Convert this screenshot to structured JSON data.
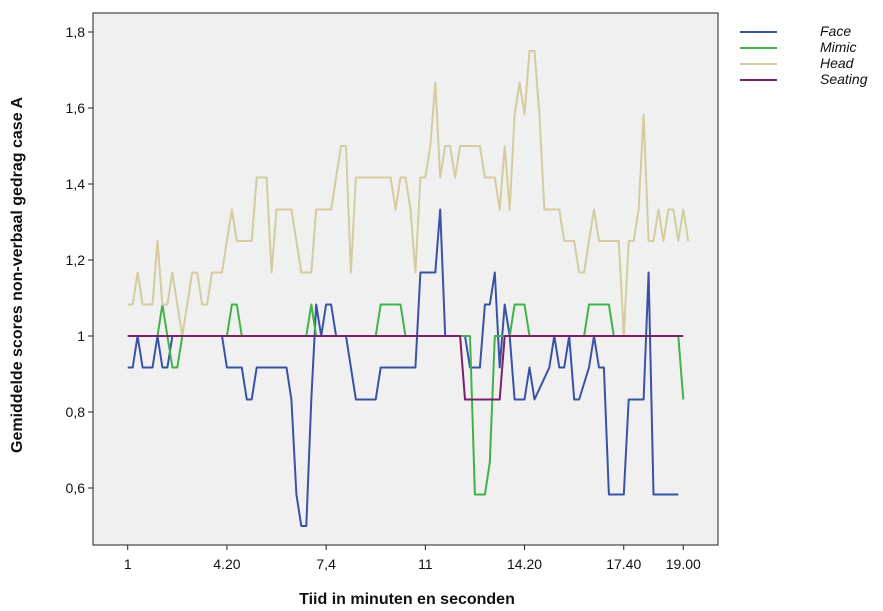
{
  "chart_data": {
    "type": "line",
    "xlabel": "Tiid in minuten en seconden",
    "ylabel": "Gemiddelde scores non-verbaal gedrag case A",
    "x_tick_labels": [
      "1",
      "4.20",
      "7,4",
      "11",
      "14.20",
      "17.40",
      "19.00"
    ],
    "x_tick_positions": [
      1,
      21,
      41,
      61,
      81,
      101,
      113
    ],
    "xlim": [
      -6,
      120
    ],
    "y_tick_labels": [
      "0,6",
      "0,8",
      "1",
      "1,2",
      "1,4",
      "1,6",
      "1,8"
    ],
    "y_tick_values": [
      0.6,
      0.8,
      1.0,
      1.2,
      1.4,
      1.6,
      1.8
    ],
    "ylim": [
      0.45,
      1.85
    ],
    "grid": false,
    "legend_position": "right",
    "plot_background": "#f0f0f0",
    "series": [
      {
        "name": "Face",
        "color": "#3953a4",
        "points": [
          [
            1,
            0.917
          ],
          [
            2,
            0.917
          ],
          [
            3,
            1.0
          ],
          [
            4,
            0.917
          ],
          [
            6,
            0.917
          ],
          [
            7,
            1.0
          ],
          [
            8,
            0.917
          ],
          [
            9,
            0.917
          ],
          [
            10,
            1.0
          ],
          [
            11,
            1.0
          ],
          [
            19,
            1.0
          ],
          [
            20,
            1.0
          ],
          [
            21,
            0.917
          ],
          [
            24,
            0.917
          ],
          [
            25,
            0.833
          ],
          [
            26,
            0.833
          ],
          [
            27,
            0.917
          ],
          [
            33,
            0.917
          ],
          [
            34,
            0.833
          ],
          [
            35,
            0.583
          ],
          [
            36,
            0.5
          ],
          [
            37,
            0.5
          ],
          [
            38,
            0.833
          ],
          [
            39,
            1.083
          ],
          [
            40,
            1.0
          ],
          [
            41,
            1.083
          ],
          [
            42,
            1.083
          ],
          [
            43,
            1.0
          ],
          [
            45,
            1.0
          ],
          [
            46,
            0.917
          ],
          [
            47,
            0.833
          ],
          [
            51,
            0.833
          ],
          [
            52,
            0.917
          ],
          [
            59,
            0.917
          ],
          [
            60,
            1.167
          ],
          [
            63,
            1.167
          ],
          [
            64,
            1.333
          ],
          [
            65,
            1.0
          ],
          [
            67,
            1.0
          ],
          [
            69,
            1.0
          ],
          [
            70,
            0.917
          ],
          [
            72,
            0.917
          ],
          [
            73,
            1.083
          ],
          [
            74,
            1.083
          ],
          [
            75,
            1.167
          ],
          [
            76,
            0.917
          ],
          [
            77,
            1.083
          ],
          [
            78,
            1.0
          ],
          [
            79,
            0.833
          ],
          [
            81,
            0.833
          ],
          [
            82,
            0.917
          ],
          [
            83,
            0.833
          ],
          [
            86,
            0.917
          ],
          [
            87,
            1.0
          ],
          [
            88,
            0.917
          ],
          [
            89,
            0.917
          ],
          [
            90,
            1.0
          ],
          [
            91,
            0.833
          ],
          [
            92,
            0.833
          ],
          [
            94,
            0.917
          ],
          [
            95,
            1.0
          ],
          [
            96,
            0.917
          ],
          [
            97,
            0.917
          ],
          [
            98,
            0.583
          ],
          [
            101,
            0.583
          ],
          [
            102,
            0.833
          ],
          [
            105,
            0.833
          ],
          [
            106,
            1.167
          ],
          [
            107,
            0.583
          ],
          [
            112,
            0.583
          ]
        ]
      },
      {
        "name": "Mimic",
        "color": "#3fb34a",
        "points": [
          [
            1,
            1.0
          ],
          [
            7,
            1.0
          ],
          [
            8,
            1.083
          ],
          [
            9,
            1.0
          ],
          [
            10,
            0.917
          ],
          [
            11,
            0.917
          ],
          [
            12,
            1.0
          ],
          [
            21,
            1.0
          ],
          [
            22,
            1.083
          ],
          [
            23,
            1.083
          ],
          [
            24,
            1.0
          ],
          [
            37,
            1.0
          ],
          [
            38,
            1.083
          ],
          [
            39,
            1.0
          ],
          [
            51,
            1.0
          ],
          [
            52,
            1.083
          ],
          [
            56,
            1.083
          ],
          [
            57,
            1.0
          ],
          [
            70,
            1.0
          ],
          [
            71,
            0.583
          ],
          [
            73,
            0.583
          ],
          [
            74,
            0.667
          ],
          [
            75,
            1.0
          ],
          [
            78,
            1.0
          ],
          [
            79,
            1.083
          ],
          [
            81,
            1.083
          ],
          [
            82,
            1.0
          ],
          [
            93,
            1.0
          ],
          [
            94,
            1.083
          ],
          [
            98,
            1.083
          ],
          [
            99,
            1.0
          ],
          [
            112,
            1.0
          ],
          [
            113,
            0.833
          ]
        ]
      },
      {
        "name": "Head",
        "color": "#d3cc9f",
        "points": [
          [
            1,
            1.083
          ],
          [
            2,
            1.083
          ],
          [
            3,
            1.167
          ],
          [
            4,
            1.083
          ],
          [
            6,
            1.083
          ],
          [
            7,
            1.25
          ],
          [
            8,
            1.083
          ],
          [
            9,
            1.083
          ],
          [
            10,
            1.167
          ],
          [
            11,
            1.083
          ],
          [
            12,
            1.0
          ],
          [
            13,
            1.083
          ],
          [
            14,
            1.167
          ],
          [
            15,
            1.167
          ],
          [
            16,
            1.083
          ],
          [
            17,
            1.083
          ],
          [
            18,
            1.167
          ],
          [
            20,
            1.167
          ],
          [
            21,
            1.25
          ],
          [
            22,
            1.333
          ],
          [
            23,
            1.25
          ],
          [
            26,
            1.25
          ],
          [
            27,
            1.417
          ],
          [
            29,
            1.417
          ],
          [
            30,
            1.167
          ],
          [
            31,
            1.333
          ],
          [
            34,
            1.333
          ],
          [
            35,
            1.25
          ],
          [
            36,
            1.167
          ],
          [
            38,
            1.167
          ],
          [
            39,
            1.333
          ],
          [
            42,
            1.333
          ],
          [
            43,
            1.417
          ],
          [
            44,
            1.5
          ],
          [
            45,
            1.5
          ],
          [
            46,
            1.167
          ],
          [
            47,
            1.417
          ],
          [
            54,
            1.417
          ],
          [
            55,
            1.333
          ],
          [
            56,
            1.417
          ],
          [
            57,
            1.417
          ],
          [
            58,
            1.333
          ],
          [
            59,
            1.167
          ],
          [
            60,
            1.417
          ],
          [
            61,
            1.417
          ],
          [
            62,
            1.5
          ],
          [
            63,
            1.667
          ],
          [
            64,
            1.417
          ],
          [
            65,
            1.5
          ],
          [
            66,
            1.5
          ],
          [
            67,
            1.417
          ],
          [
            68,
            1.5
          ],
          [
            72,
            1.5
          ],
          [
            73,
            1.417
          ],
          [
            75,
            1.417
          ],
          [
            76,
            1.333
          ],
          [
            77,
            1.5
          ],
          [
            78,
            1.333
          ],
          [
            79,
            1.583
          ],
          [
            80,
            1.667
          ],
          [
            81,
            1.583
          ],
          [
            82,
            1.75
          ],
          [
            83,
            1.75
          ],
          [
            84,
            1.583
          ],
          [
            85,
            1.333
          ],
          [
            88,
            1.333
          ],
          [
            89,
            1.25
          ],
          [
            91,
            1.25
          ],
          [
            92,
            1.167
          ],
          [
            93,
            1.167
          ],
          [
            94,
            1.25
          ],
          [
            95,
            1.333
          ],
          [
            96,
            1.25
          ],
          [
            100,
            1.25
          ],
          [
            101,
            1.0
          ],
          [
            102,
            1.25
          ],
          [
            103,
            1.25
          ],
          [
            104,
            1.333
          ],
          [
            105,
            1.583
          ],
          [
            106,
            1.25
          ],
          [
            107,
            1.25
          ],
          [
            108,
            1.333
          ],
          [
            109,
            1.25
          ],
          [
            110,
            1.333
          ],
          [
            111,
            1.333
          ],
          [
            112,
            1.25
          ],
          [
            113,
            1.333
          ],
          [
            114,
            1.25
          ]
        ]
      },
      {
        "name": "Seating",
        "color": "#7b2069",
        "points": [
          [
            1,
            1.0
          ],
          [
            67,
            1.0
          ],
          [
            68,
            1.0
          ],
          [
            69,
            0.833
          ],
          [
            76,
            0.833
          ],
          [
            77,
            1.0
          ],
          [
            113,
            1.0
          ]
        ]
      }
    ]
  }
}
